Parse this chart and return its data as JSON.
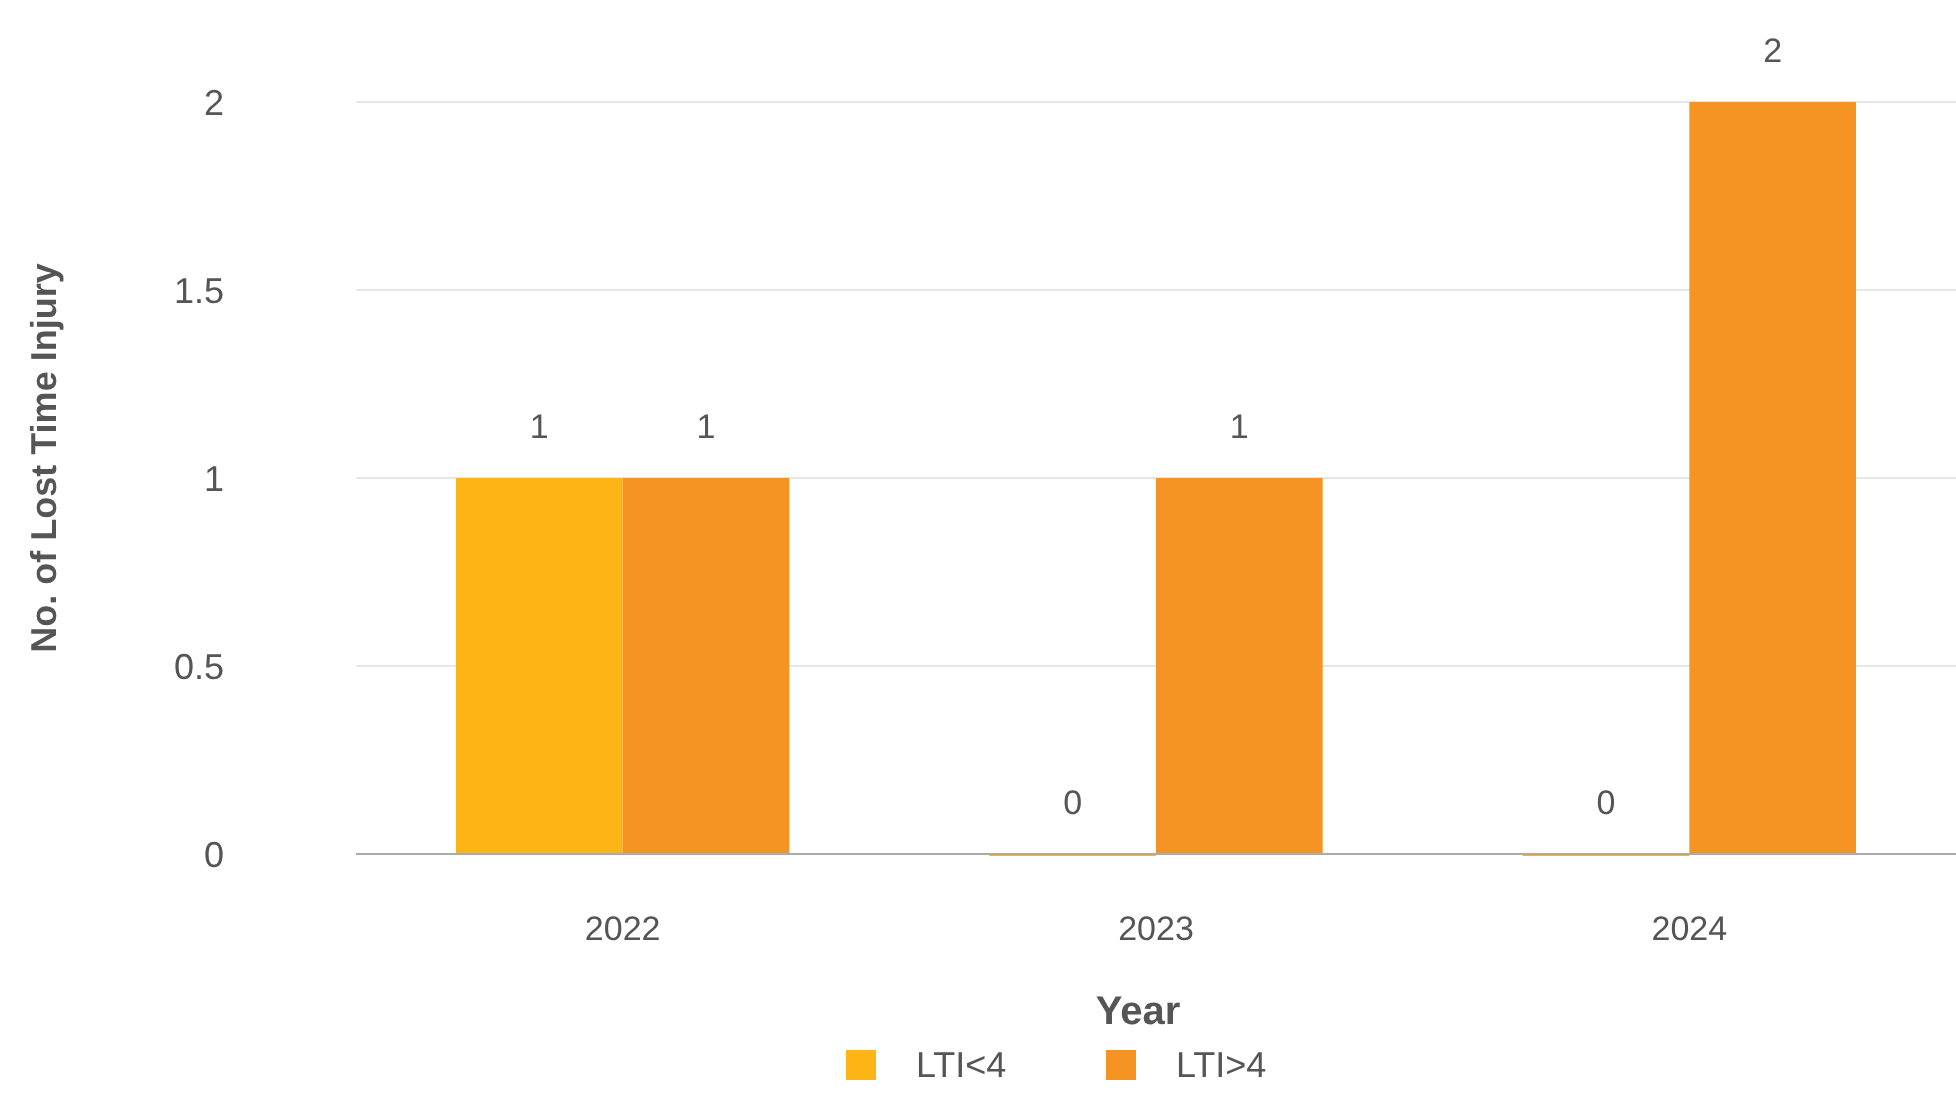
{
  "chart_data": {
    "type": "bar",
    "categories": [
      "2022",
      "2023",
      "2024"
    ],
    "series": [
      {
        "name": "LTI<4",
        "color": "#fdb515",
        "values": [
          1,
          0,
          0
        ]
      },
      {
        "name": "LTI>4",
        "color": "#f59323",
        "values": [
          1,
          1,
          2
        ]
      }
    ],
    "xlabel": "Year",
    "ylabel": "No. of Lost Time Injury",
    "ylim": [
      0,
      2
    ],
    "yticks": [
      0,
      0.5,
      1,
      1.5,
      2
    ],
    "grid": "y",
    "legend": "bottom",
    "data_labels": true
  }
}
